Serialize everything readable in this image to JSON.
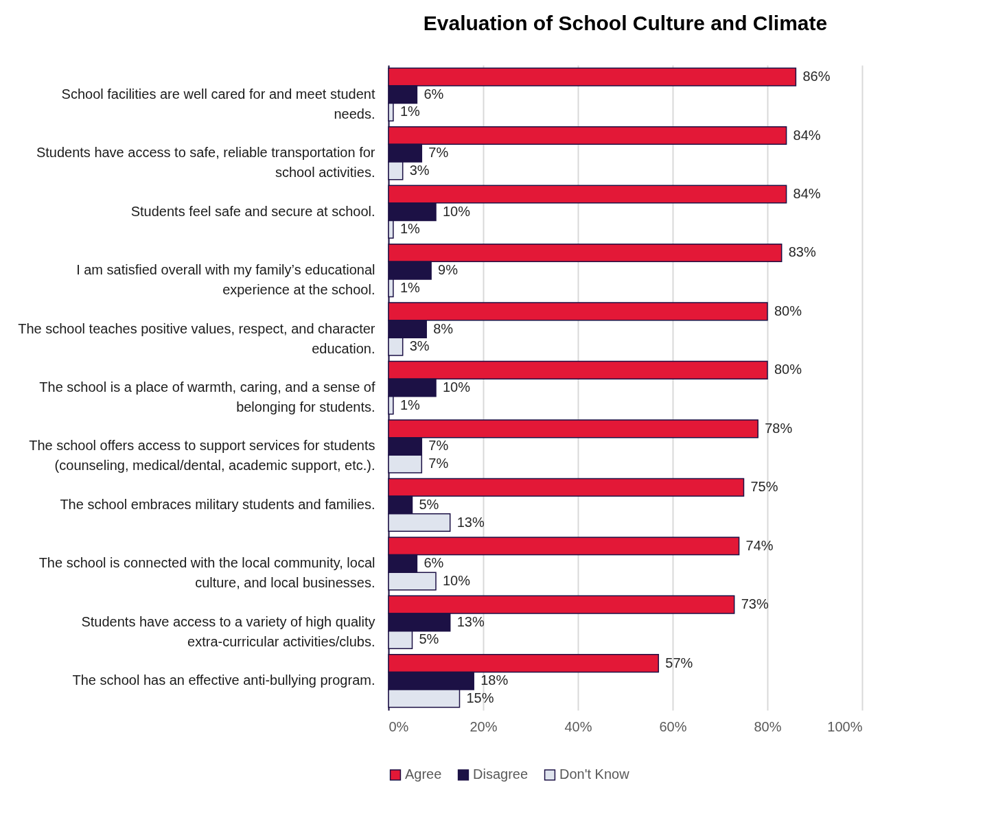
{
  "chart_data": {
    "type": "bar",
    "orientation": "horizontal",
    "title": "Evaluation of School Culture and Climate",
    "categories": [
      "School facilities are well cared for and meet student needs.",
      "Students have access to safe, reliable transportation for school activities.",
      "Students feel safe and secure at school.",
      "I am satisfied overall with my family’s educational experience at the school.",
      "The school teaches positive values, respect, and character education.",
      "The school is a place of warmth, caring, and a sense of belonging for students.",
      "The school offers access to support services for students (counseling, medical/dental, academic support, etc.).",
      "The school embraces military students and families.",
      "The school is connected with the local community, local culture, and local businesses.",
      "Students have access to a variety of high quality extra-curricular activities/clubs.",
      "The school has an effective anti-bullying program."
    ],
    "series": [
      {
        "name": "Agree",
        "color": "#e31837",
        "values": [
          86,
          84,
          84,
          83,
          80,
          80,
          78,
          75,
          74,
          73,
          57
        ],
        "value_labels": [
          "86%",
          "84%",
          "84%",
          "83%",
          "80%",
          "80%",
          "78%",
          "75%",
          "74%",
          "73%",
          "57%"
        ]
      },
      {
        "name": "Disagree",
        "color": "#1c1145",
        "values": [
          6,
          7,
          10,
          9,
          8,
          10,
          7,
          5,
          6,
          13,
          18
        ],
        "value_labels": [
          "6%",
          "7%",
          "10%",
          "9%",
          "8%",
          "10%",
          "7%",
          "5%",
          "6%",
          "13%",
          "18%"
        ]
      },
      {
        "name": "Don't Know",
        "color": "#dfe4ee",
        "values": [
          1,
          3,
          1,
          1,
          3,
          1,
          7,
          13,
          10,
          5,
          15
        ],
        "value_labels": [
          "1%",
          "3%",
          "1%",
          "1%",
          "3%",
          "1%",
          "7%",
          "13%",
          "10%",
          "5%",
          "15%"
        ]
      }
    ],
    "xlim": [
      0,
      100
    ],
    "xticks": [
      {
        "value": 0,
        "label": "0%"
      },
      {
        "value": 20,
        "label": "20%"
      },
      {
        "value": 40,
        "label": "40%"
      },
      {
        "value": 60,
        "label": "60%"
      },
      {
        "value": 80,
        "label": "80%"
      },
      {
        "value": 100,
        "label": "100%"
      }
    ],
    "grid": "x",
    "legend": "bottom"
  }
}
